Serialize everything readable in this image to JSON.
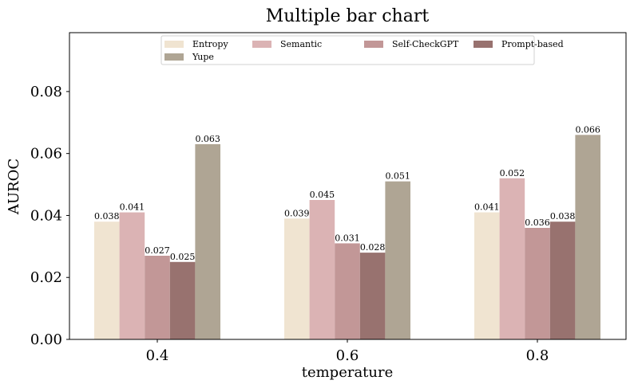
{
  "chart_data": {
    "type": "bar",
    "title": "Multiple bar chart",
    "xlabel": "temperature",
    "ylabel": "AUROC",
    "categories": [
      "0.4",
      "0.6",
      "0.8"
    ],
    "ylim": [
      0,
      0.099
    ],
    "yticks": [
      0.0,
      0.02,
      0.04,
      0.06,
      0.08
    ],
    "ytick_labels": [
      "0.00",
      "0.02",
      "0.04",
      "0.06",
      "0.08"
    ],
    "grid": false,
    "legend_position": "top-center",
    "series": [
      {
        "name": "Entropy",
        "color": "#f0e4d1",
        "values": [
          0.038,
          0.039,
          0.041
        ],
        "labels": [
          "0.038",
          "0.039",
          "0.041"
        ]
      },
      {
        "name": "Semantic",
        "color": "#dbb3b4",
        "values": [
          0.041,
          0.045,
          0.052
        ],
        "labels": [
          "0.041",
          "0.045",
          "0.052"
        ]
      },
      {
        "name": "Self-CheckGPT",
        "color": "#c29797",
        "values": [
          0.027,
          0.031,
          0.036
        ],
        "labels": [
          "0.027",
          "0.031",
          "0.036"
        ]
      },
      {
        "name": "Prompt-based",
        "color": "#98726f",
        "values": [
          0.025,
          0.028,
          0.038
        ],
        "labels": [
          "0.025",
          "0.028",
          "0.038"
        ]
      },
      {
        "name": "Yupe",
        "color": "#afa594",
        "values": [
          0.063,
          0.051,
          0.066
        ],
        "labels": [
          "0.063",
          "0.051",
          "0.066"
        ]
      }
    ]
  }
}
